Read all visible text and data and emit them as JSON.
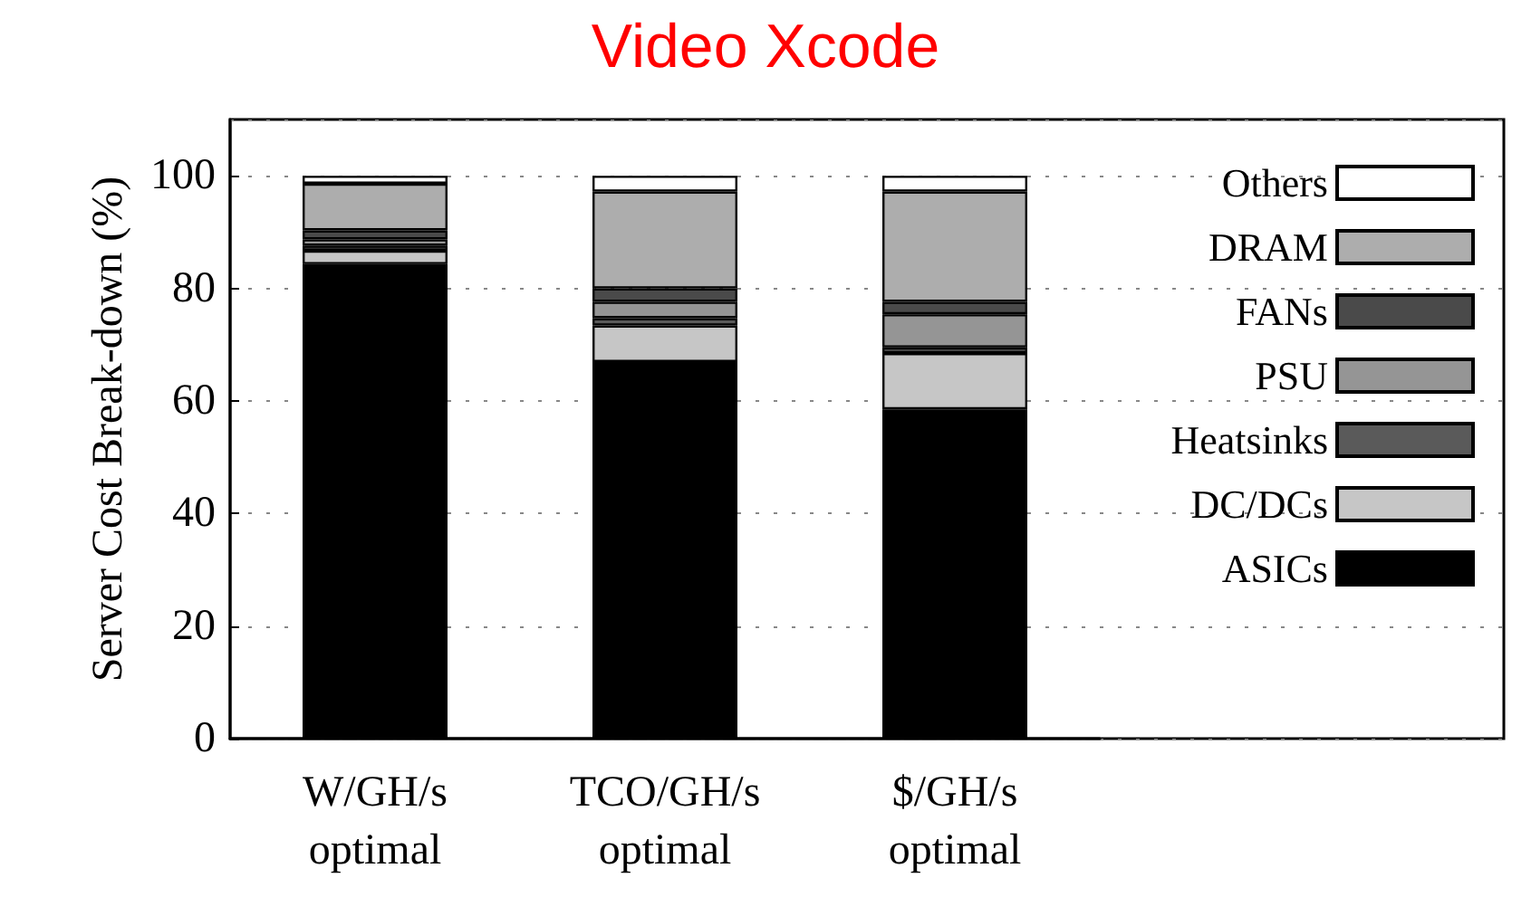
{
  "chart_data": {
    "type": "bar",
    "title": "Video Xcode",
    "ylabel": "Server Cost Break-down (%)",
    "categories": [
      "W/GH/s\noptimal",
      "TCO/GH/s\noptimal",
      "$/GH/s\noptimal"
    ],
    "stacked": true,
    "ylim": [
      0,
      110
    ],
    "yticks": [
      0,
      20,
      40,
      60,
      80,
      100
    ],
    "grid": "y",
    "legend": "top right",
    "series": [
      {
        "name": "ASICs",
        "color": "#000000",
        "values": [
          84.3,
          66.9,
          58.5
        ]
      },
      {
        "name": "DC/DCs",
        "color": "#c6c6c6",
        "values": [
          2.4,
          6.5,
          10
        ]
      },
      {
        "name": "Heatsinks",
        "color": "#5a5a5a",
        "values": [
          0.9,
          1.3,
          1
        ]
      },
      {
        "name": "PSU",
        "color": "#959595",
        "values": [
          1.1,
          2.9,
          5.9
        ]
      },
      {
        "name": "FANs",
        "color": "#4a4a4a",
        "values": [
          1.6,
          2.4,
          2.2
        ]
      },
      {
        "name": "DRAM",
        "color": "#adadad",
        "values": [
          8.3,
          17.2,
          19.6
        ]
      },
      {
        "name": "Others",
        "color": "#ffffff",
        "values": [
          1.4,
          2.8,
          2.8
        ]
      }
    ]
  }
}
